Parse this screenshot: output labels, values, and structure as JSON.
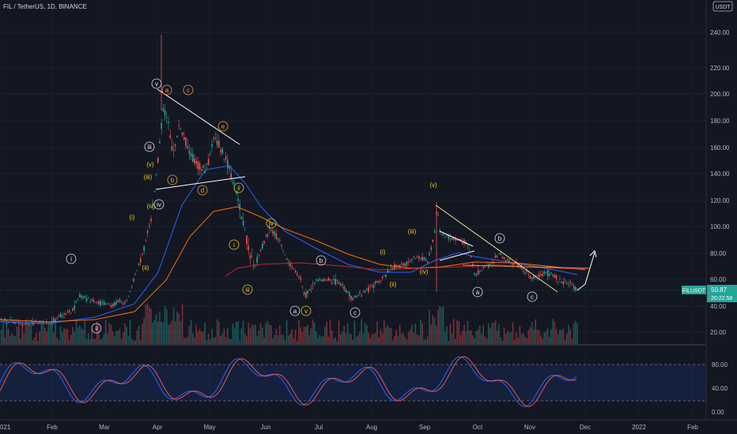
{
  "header": {
    "title": "FIL / TetherUS, 1D, BINANCE"
  },
  "price_axis": {
    "currency": "USDT",
    "ticks": [
      "20.00",
      "40.00",
      "60.00",
      "80.00",
      "100.00",
      "120.00",
      "140.00",
      "160.00",
      "180.00",
      "200.00",
      "220.00",
      "240.00"
    ],
    "price_label": "50.87",
    "symbol_label": "FILUSDT",
    "countdown": "20:22:58"
  },
  "oscillator_axis": {
    "ticks": [
      "80.00",
      "40.00",
      "0.00"
    ]
  },
  "time_axis": {
    "labels": [
      "021",
      "Feb",
      "Mar",
      "Apr",
      "May",
      "Jun",
      "Jul",
      "Aug",
      "Sep",
      "Oct",
      "Nov",
      "Dec",
      "2022",
      "Feb"
    ]
  },
  "wave_labels": [
    {
      "text": "i",
      "style": "circle-white"
    },
    {
      "text": "ii",
      "style": "circle-white"
    },
    {
      "text": "(i)",
      "style": "yellow"
    },
    {
      "text": "(ii)",
      "style": "yellow"
    },
    {
      "text": "(iii)",
      "style": "yellow"
    },
    {
      "text": "(iv)",
      "style": "yellow"
    },
    {
      "text": "(v)",
      "style": "yellow"
    },
    {
      "text": "iii",
      "style": "circle-white"
    },
    {
      "text": "iv",
      "style": "circle-white"
    },
    {
      "text": "v",
      "style": "circle-white"
    },
    {
      "text": "a",
      "style": "circle-orange"
    },
    {
      "text": "b",
      "style": "circle-orange"
    },
    {
      "text": "c",
      "style": "circle-orange"
    },
    {
      "text": "d",
      "style": "circle-orange"
    },
    {
      "text": "e",
      "style": "circle-orange"
    },
    {
      "text": "i",
      "style": "circle-yellow"
    },
    {
      "text": "ii",
      "style": "circle-yellow"
    },
    {
      "text": "iii",
      "style": "circle-yellow"
    },
    {
      "text": "iv",
      "style": "circle-yellow"
    },
    {
      "text": "v",
      "style": "circle-yellow"
    },
    {
      "text": "a",
      "style": "circle-white"
    },
    {
      "text": "b",
      "style": "circle-white"
    },
    {
      "text": "c",
      "style": "circle-white"
    },
    {
      "text": "(i)",
      "style": "yellow"
    },
    {
      "text": "(ii)",
      "style": "yellow"
    },
    {
      "text": "(iii)",
      "style": "yellow"
    },
    {
      "text": "(iv)",
      "style": "yellow"
    },
    {
      "text": "(v)",
      "style": "yellow"
    },
    {
      "text": "a",
      "style": "circle-white"
    },
    {
      "text": "b",
      "style": "circle-white"
    },
    {
      "text": "c",
      "style": "circle-white"
    }
  ],
  "colors": {
    "up": "#26a69a",
    "down": "#ef5350",
    "ma_blue": "#2962ff",
    "ma_orange": "#ff6d00",
    "ma_red": "#c62828",
    "osc_k": "#2962ff",
    "osc_d": "#ef5350",
    "background": "#131722"
  }
}
